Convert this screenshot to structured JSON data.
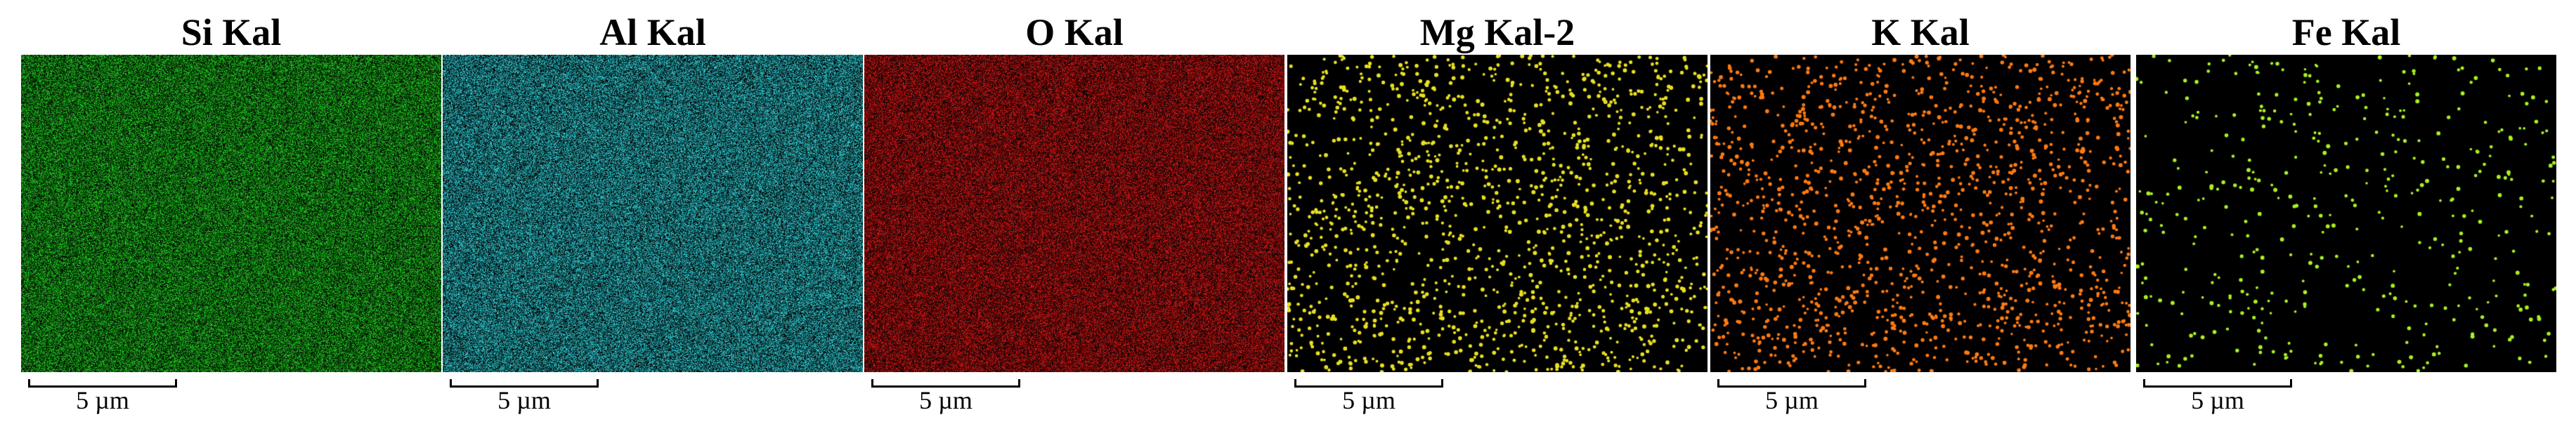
{
  "panels": [
    {
      "title": "Si Kal",
      "color": "#22dd22",
      "base": "#0a3a0a",
      "density": "high"
    },
    {
      "title": "Al Kal",
      "color": "#33e0e8",
      "base": "#063a3c",
      "density": "high"
    },
    {
      "title": "O Kal",
      "color": "#e81818",
      "base": "#3a0404",
      "density": "high"
    },
    {
      "title": "Mg Kal-2",
      "color": "#e8e020",
      "base": "#000000",
      "density": "sparse"
    },
    {
      "title": "K Kal",
      "color": "#ff7a10",
      "base": "#000000",
      "density": "sparse"
    },
    {
      "title": "Fe Kal",
      "color": "#a8f020",
      "base": "#000000",
      "density": "very-sparse"
    }
  ],
  "scale_bar": {
    "label": "5 µm"
  }
}
